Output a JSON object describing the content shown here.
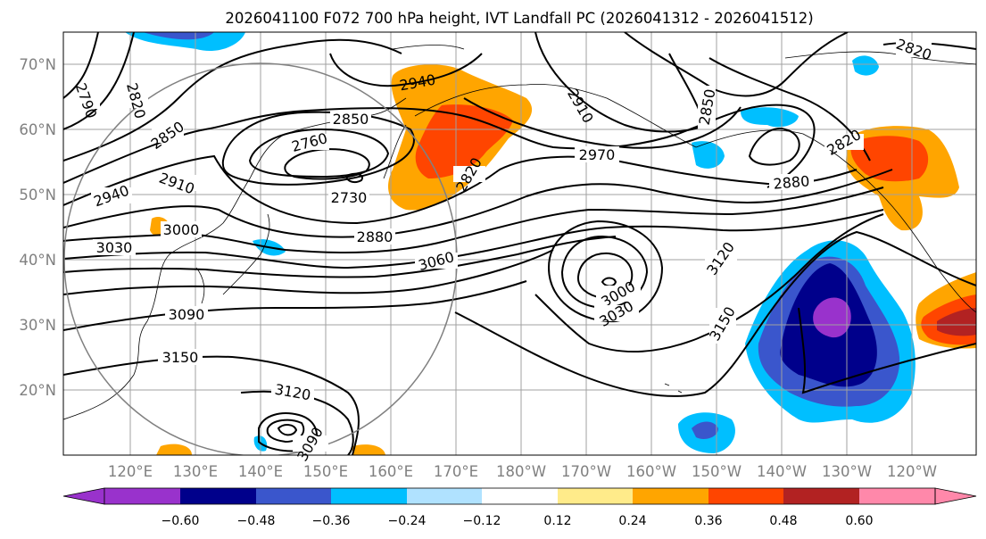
{
  "title": "2026041100 F072 700 hPa height, IVT Landfall PC (2026041312 - 2026041512)",
  "lat_labels": [
    "70°N",
    "60°N",
    "50°N",
    "40°N",
    "30°N",
    "20°N"
  ],
  "lon_labels": [
    "120°E",
    "130°E",
    "140°E",
    "150°E",
    "160°E",
    "170°E",
    "180°W",
    "170°W",
    "160°W",
    "150°W",
    "140°W",
    "130°W",
    "120°W"
  ],
  "colorbar": {
    "colors": [
      "#9932cc",
      "#00008b",
      "#3a56cc",
      "#00bfff",
      "#b0e2ff",
      "#ffffff",
      "#ffeb8a",
      "#ffa500",
      "#ff4500",
      "#b22222",
      "#ff88aa"
    ],
    "ticks": [
      "−0.60",
      "−0.48",
      "−0.36",
      "−0.24",
      "−0.12",
      "0.12",
      "0.24",
      "0.36",
      "0.48",
      "0.60"
    ]
  },
  "contour_labels": [
    "2790",
    "2820",
    "2850",
    "2940",
    "2850",
    "2760",
    "2730",
    "2880",
    "2910",
    "2940",
    "3000",
    "3030",
    "3060",
    "3090",
    "3150",
    "3120",
    "3090",
    "2820",
    "2910",
    "2970",
    "2850",
    "2880",
    "2820",
    "2820",
    "3120",
    "3150",
    "3000",
    "3030"
  ]
}
